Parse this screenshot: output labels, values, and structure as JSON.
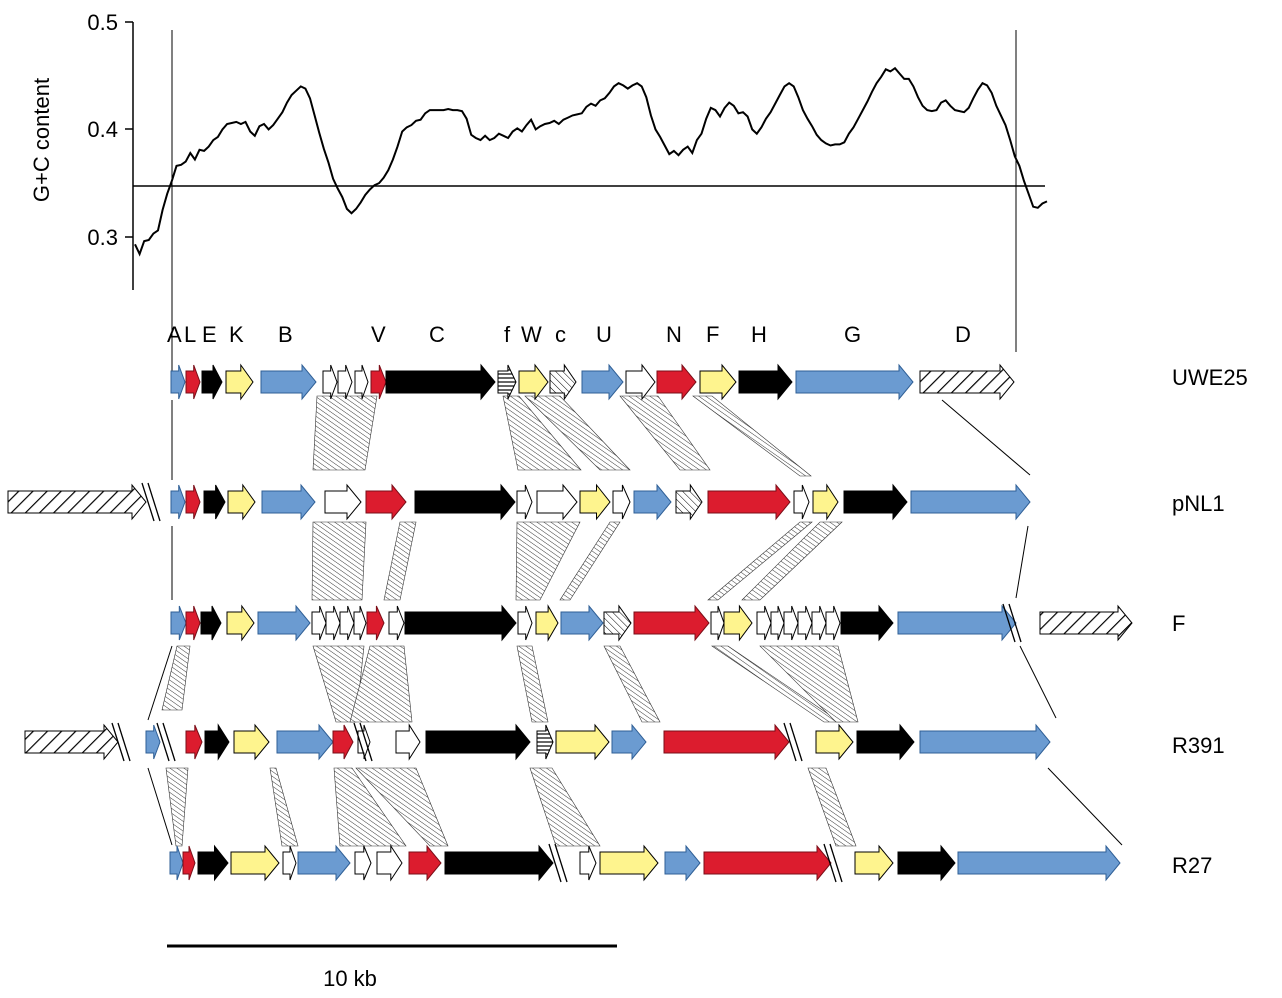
{
  "gc_plot": {
    "ylabel": "G+C content",
    "yticks": [
      "0.5",
      "0.4",
      "0.3"
    ],
    "ytick_values": [
      0.5,
      0.4,
      0.3
    ],
    "ylim": [
      0.25,
      0.5
    ],
    "reference_line": 0.347,
    "curve_values": [
      0.293,
      0.284,
      0.296,
      0.297,
      0.303,
      0.306,
      0.325,
      0.34,
      0.352,
      0.366,
      0.367,
      0.37,
      0.378,
      0.372,
      0.381,
      0.38,
      0.384,
      0.39,
      0.393,
      0.4,
      0.405,
      0.406,
      0.407,
      0.405,
      0.407,
      0.398,
      0.394,
      0.403,
      0.405,
      0.4,
      0.404,
      0.41,
      0.416,
      0.425,
      0.432,
      0.436,
      0.44,
      0.438,
      0.429,
      0.413,
      0.397,
      0.382,
      0.369,
      0.354,
      0.345,
      0.337,
      0.326,
      0.322,
      0.326,
      0.332,
      0.339,
      0.344,
      0.348,
      0.35,
      0.355,
      0.362,
      0.372,
      0.384,
      0.398,
      0.402,
      0.404,
      0.408,
      0.409,
      0.415,
      0.418,
      0.418,
      0.418,
      0.418,
      0.419,
      0.418,
      0.418,
      0.417,
      0.41,
      0.395,
      0.392,
      0.39,
      0.394,
      0.39,
      0.392,
      0.396,
      0.394,
      0.392,
      0.398,
      0.401,
      0.398,
      0.404,
      0.409,
      0.4,
      0.403,
      0.405,
      0.406,
      0.408,
      0.405,
      0.409,
      0.411,
      0.413,
      0.414,
      0.415,
      0.421,
      0.424,
      0.422,
      0.427,
      0.429,
      0.434,
      0.44,
      0.443,
      0.441,
      0.438,
      0.441,
      0.443,
      0.44,
      0.43,
      0.413,
      0.4,
      0.393,
      0.385,
      0.377,
      0.38,
      0.376,
      0.381,
      0.384,
      0.378,
      0.39,
      0.396,
      0.41,
      0.42,
      0.418,
      0.412,
      0.42,
      0.425,
      0.422,
      0.415,
      0.416,
      0.412,
      0.4,
      0.396,
      0.402,
      0.41,
      0.416,
      0.424,
      0.432,
      0.44,
      0.443,
      0.44,
      0.43,
      0.418,
      0.41,
      0.403,
      0.395,
      0.39,
      0.387,
      0.385,
      0.386,
      0.386,
      0.388,
      0.396,
      0.402,
      0.41,
      0.418,
      0.426,
      0.435,
      0.443,
      0.449,
      0.456,
      0.454,
      0.457,
      0.452,
      0.447,
      0.447,
      0.44,
      0.43,
      0.422,
      0.418,
      0.417,
      0.418,
      0.425,
      0.427,
      0.422,
      0.418,
      0.417,
      0.416,
      0.42,
      0.429,
      0.437,
      0.443,
      0.441,
      0.434,
      0.422,
      0.413,
      0.404,
      0.39,
      0.375,
      0.366,
      0.352,
      0.34,
      0.328,
      0.327,
      0.331,
      0.333
    ]
  },
  "gene_letters": [
    "A",
    "L",
    "E",
    "K",
    "B",
    "V",
    "C",
    "f",
    "W",
    "c",
    "U",
    "N",
    "F",
    "H",
    "G",
    "D"
  ],
  "rows": [
    {
      "label": "UWE25"
    },
    {
      "label": "pNL1"
    },
    {
      "label": "F"
    },
    {
      "label": "R391"
    },
    {
      "label": "R27"
    }
  ],
  "scale_bar": {
    "label": "10 kb"
  },
  "colors": {
    "blue": "#6b9bd1",
    "red": "#dc1c2e",
    "yellow": "#fef48e",
    "black": "#000000",
    "white": "#ffffff",
    "line": "#000000"
  }
}
